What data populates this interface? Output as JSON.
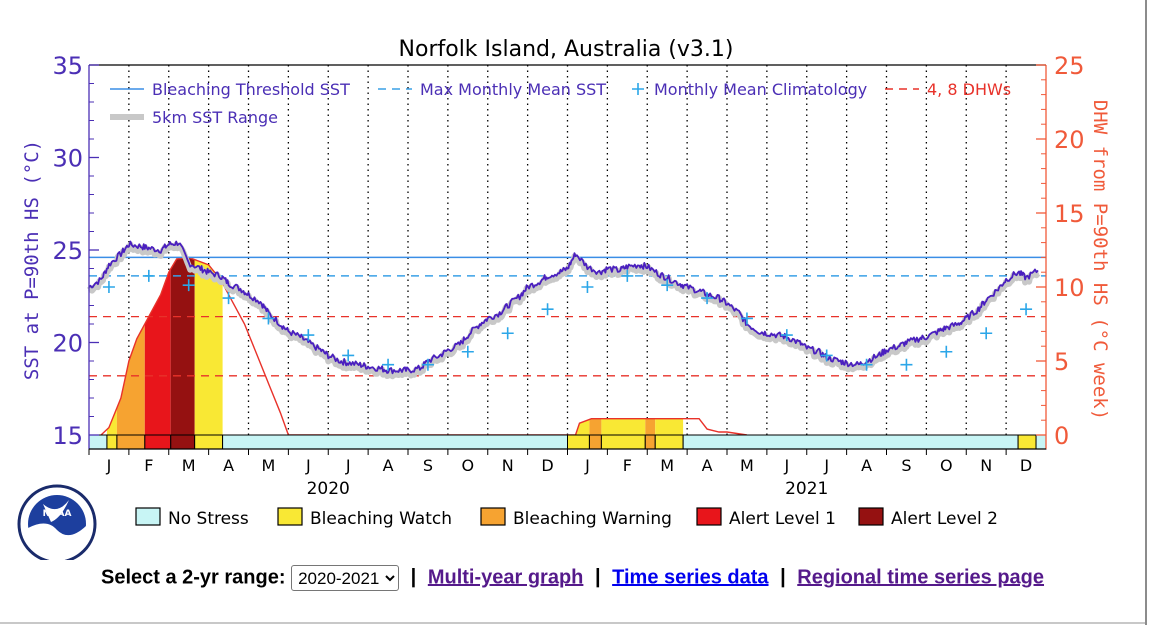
{
  "chart_data": {
    "type": "line",
    "title": "Norfolk Island, Australia (v3.1)",
    "ylabel_left": "SST at P=90th HS (°C)",
    "ylabel_right": "DHW from P=90th HS (°C week)",
    "ylim_left": [
      15,
      35
    ],
    "ylim_right": [
      0,
      25
    ],
    "yticks_left": [
      "15",
      "20",
      "25",
      "30",
      "35"
    ],
    "yticks_right": [
      "0",
      "5",
      "10",
      "15",
      "20",
      "25"
    ],
    "month_labels": [
      "J",
      "F",
      "M",
      "A",
      "M",
      "J",
      "J",
      "A",
      "S",
      "O",
      "N",
      "D",
      "J",
      "F",
      "M",
      "A",
      "M",
      "J",
      "J",
      "A",
      "S",
      "O",
      "N",
      "D"
    ],
    "year_labels": [
      "2020",
      "2021"
    ],
    "bleaching_threshold_sst": 24.6,
    "max_monthly_mean_sst": 23.6,
    "dhw_reference_lines": [
      4,
      8
    ],
    "legend": [
      {
        "label": "Bleaching Threshold SST",
        "color": "#3a8ee6",
        "style": "solid"
      },
      {
        "label": "Max Monthly Mean SST",
        "color": "#3aa0e6",
        "style": "dashed"
      },
      {
        "label": "Monthly Mean Climatology",
        "color": "#2ba6e8",
        "style": "plus"
      },
      {
        "label": "4, 8 DHWs",
        "color": "#e8322a",
        "style": "dashed"
      },
      {
        "label": "5km SST Range",
        "color": "#c8c8c8",
        "style": "thick"
      }
    ],
    "climatology": {
      "months": [
        0,
        1,
        2,
        3,
        4,
        5,
        6,
        7,
        8,
        9,
        10,
        11,
        12,
        13,
        14,
        15,
        16,
        17,
        18,
        19,
        20,
        21,
        22,
        23
      ],
      "values": [
        23.0,
        23.6,
        23.1,
        22.4,
        21.3,
        20.4,
        19.3,
        18.8,
        18.8,
        19.5,
        20.5,
        21.8,
        23.0,
        23.6,
        23.1,
        22.4,
        21.3,
        20.4,
        19.3,
        18.8,
        18.8,
        19.5,
        20.5,
        21.8
      ]
    },
    "sst": {
      "x_months": [
        0.0,
        0.3,
        0.5,
        0.8,
        1.0,
        1.3,
        1.5,
        1.8,
        2.0,
        2.25,
        2.5,
        2.8,
        3.0,
        3.3,
        3.5,
        3.8,
        4.0,
        4.3,
        4.5,
        4.8,
        5.0,
        5.3,
        5.5,
        5.8,
        6.0,
        6.3,
        6.5,
        6.8,
        7.0,
        7.3,
        7.5,
        7.8,
        8.0,
        8.3,
        8.5,
        8.8,
        9.0,
        9.3,
        9.5,
        9.8,
        10.0,
        10.3,
        10.5,
        10.8,
        11.0,
        11.3,
        11.5,
        11.8,
        12.0,
        12.2,
        12.5,
        12.8,
        13.0,
        13.3,
        13.5,
        13.8,
        14.0,
        14.3,
        14.5,
        14.8,
        15.0,
        15.3,
        15.5,
        15.8,
        16.0,
        16.3,
        16.5,
        16.8,
        17.0,
        17.3,
        17.5,
        17.8,
        18.0,
        18.3,
        18.5,
        18.8,
        19.0,
        19.3,
        19.5,
        19.8,
        20.0,
        20.3,
        20.5,
        20.8,
        21.0,
        21.3,
        21.5,
        21.8,
        22.0,
        22.3,
        22.5,
        22.8,
        23.0,
        23.3,
        23.5,
        23.8
      ],
      "values": [
        23.0,
        23.4,
        24.2,
        24.8,
        25.3,
        25.2,
        25.1,
        25.0,
        25.3,
        25.4,
        24.3,
        24.0,
        23.8,
        23.6,
        23.2,
        22.9,
        22.6,
        22.2,
        21.6,
        21.0,
        20.6,
        20.3,
        20.0,
        19.6,
        19.3,
        19.0,
        18.9,
        18.8,
        18.7,
        18.6,
        18.5,
        18.5,
        18.5,
        18.6,
        19.0,
        19.3,
        19.6,
        19.9,
        20.4,
        21.0,
        21.3,
        21.6,
        22.0,
        22.5,
        23.0,
        23.3,
        23.6,
        23.8,
        24.0,
        24.8,
        24.1,
        23.8,
        24.0,
        23.9,
        24.1,
        24.2,
        24.1,
        23.7,
        23.5,
        23.2,
        23.0,
        22.8,
        22.6,
        22.4,
        22.1,
        21.6,
        21.0,
        20.6,
        20.5,
        20.4,
        20.3,
        20.0,
        19.7,
        19.5,
        19.2,
        19.0,
        18.9,
        18.8,
        19.0,
        19.3,
        19.6,
        19.8,
        20.0,
        20.2,
        20.3,
        20.6,
        20.8,
        21.0,
        21.3,
        21.8,
        22.3,
        22.9,
        23.4,
        23.8,
        23.5,
        23.9
      ]
    },
    "dhw": {
      "x_months": [
        0.3,
        0.5,
        0.8,
        1.0,
        1.2,
        1.5,
        1.8,
        2.0,
        2.2,
        2.5,
        3.0,
        3.3,
        3.6,
        3.9,
        4.2,
        4.5,
        4.8,
        5.0,
        12.2,
        12.3,
        12.6,
        13.0,
        13.5,
        14.0,
        14.5,
        15.0,
        15.3,
        15.5,
        15.8,
        16.0,
        16.5
      ],
      "values": [
        0.0,
        0.5,
        2.5,
        5.0,
        6.5,
        8.0,
        9.5,
        11.0,
        11.9,
        12.0,
        11.5,
        10.5,
        9.0,
        7.5,
        5.5,
        3.5,
        1.5,
        0.0,
        0.0,
        0.8,
        1.1,
        1.1,
        1.1,
        1.1,
        1.1,
        1.1,
        1.1,
        0.4,
        0.2,
        0.2,
        0.0
      ]
    },
    "stress_bar": [
      {
        "from": 0,
        "to": 0.45,
        "level": "No Stress"
      },
      {
        "from": 0.45,
        "to": 0.7,
        "level": "Bleaching Watch"
      },
      {
        "from": 0.7,
        "to": 1.4,
        "level": "Bleaching Warning"
      },
      {
        "from": 1.4,
        "to": 2.05,
        "level": "Alert Level 1"
      },
      {
        "from": 2.05,
        "to": 2.65,
        "level": "Alert Level 2"
      },
      {
        "from": 2.65,
        "to": 3.35,
        "level": "Bleaching Watch"
      },
      {
        "from": 3.35,
        "to": 12.0,
        "level": "No Stress"
      },
      {
        "from": 12.0,
        "to": 12.55,
        "level": "Bleaching Watch"
      },
      {
        "from": 12.55,
        "to": 12.85,
        "level": "Bleaching Warning"
      },
      {
        "from": 12.85,
        "to": 13.95,
        "level": "Bleaching Watch"
      },
      {
        "from": 13.95,
        "to": 14.2,
        "level": "Bleaching Warning"
      },
      {
        "from": 14.2,
        "to": 14.9,
        "level": "Bleaching Watch"
      },
      {
        "from": 14.9,
        "to": 23.3,
        "level": "No Stress"
      },
      {
        "from": 23.3,
        "to": 23.75,
        "level": "Bleaching Watch"
      },
      {
        "from": 23.75,
        "to": 24.0,
        "level": "No Stress"
      }
    ],
    "stress_legend": [
      {
        "label": "No Stress",
        "color": "#c8f5f5"
      },
      {
        "label": "Bleaching Watch",
        "color": "#f9e834"
      },
      {
        "label": "Bleaching Warning",
        "color": "#f6a331"
      },
      {
        "label": "Alert Level 1",
        "color": "#e8151b"
      },
      {
        "label": "Alert Level 2",
        "color": "#951111"
      }
    ],
    "colors": {
      "sst_line": "#4a1fbf",
      "sst_range": "#c8c8c8",
      "threshold": "#3a8ee6",
      "mmm": "#3aa0e6",
      "dhw": "#e8322a",
      "right_axis": "#f05a3a",
      "left_axis": "#4b2fb5"
    }
  },
  "logo": {
    "text": "NOAA"
  },
  "controls": {
    "select_label": "Select a 2-yr range:",
    "select_value": "2020-2021",
    "sep": "|",
    "link_multiyear": "Multi-year graph",
    "link_timeseries": "Time series data",
    "link_regional": "Regional time series page"
  }
}
